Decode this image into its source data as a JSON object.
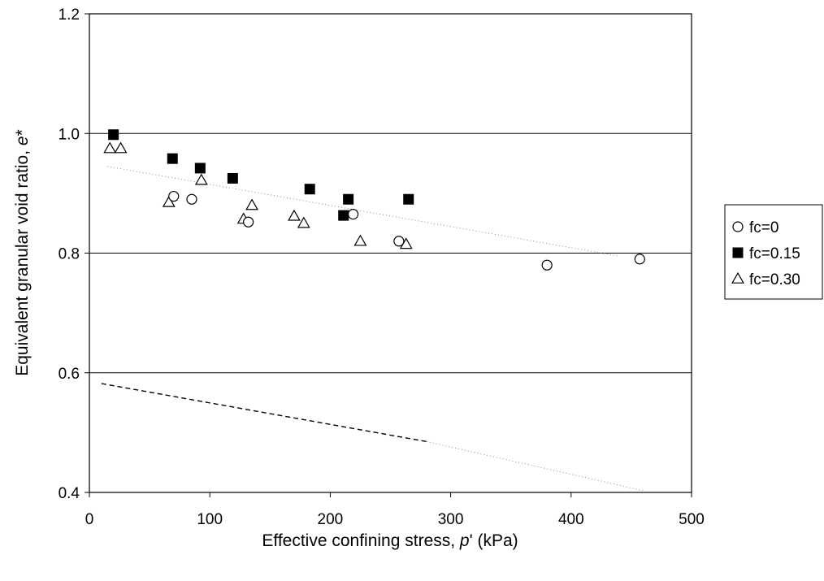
{
  "chart_data": {
    "type": "scatter",
    "xlabel": {
      "prefix": "Effective confining stress, ",
      "symbol": "p",
      "suffix": "' (kPa)"
    },
    "ylabel": {
      "prefix": "Equivalent granular void ratio, ",
      "symbol": "e",
      "suffix": "*"
    },
    "xlim": [
      0,
      500
    ],
    "ylim": [
      0.4,
      1.2
    ],
    "x_ticks": [
      "0",
      "100",
      "200",
      "300",
      "400",
      "500"
    ],
    "y_ticks": [
      "0.4",
      "0.6",
      "0.8",
      "1.0",
      "1.2"
    ],
    "x_tick_values": [
      0,
      100,
      200,
      300,
      400,
      500
    ],
    "y_tick_values": [
      0.4,
      0.6,
      0.8,
      1.0,
      1.2
    ],
    "grid": "horizontal",
    "legend_position": "right",
    "series": [
      {
        "name": "fc=0",
        "marker": "circle-open",
        "x": [
          70,
          85,
          132,
          219,
          257,
          380,
          457
        ],
        "y": [
          0.895,
          0.89,
          0.852,
          0.865,
          0.82,
          0.78,
          0.79
        ]
      },
      {
        "name": "fc=0.15",
        "marker": "square-filled",
        "x": [
          20,
          69,
          92,
          119,
          183,
          211,
          215,
          265
        ],
        "y": [
          0.998,
          0.958,
          0.942,
          0.925,
          0.907,
          0.863,
          0.89,
          0.89
        ]
      },
      {
        "name": "fc=0.30",
        "marker": "triangle-open",
        "x": [
          17,
          26,
          66,
          93,
          128,
          135,
          170,
          178,
          225,
          263
        ],
        "y": [
          0.975,
          0.975,
          0.885,
          0.922,
          0.857,
          0.88,
          0.862,
          0.85,
          0.82,
          0.815
        ]
      }
    ],
    "lines": [
      {
        "style": "dashed",
        "x": [
          10,
          280
        ],
        "y": [
          0.582,
          0.485
        ]
      },
      {
        "style": "dotted-faint",
        "x": [
          280,
          460
        ],
        "y": [
          0.485,
          0.403
        ]
      },
      {
        "style": "dotted-faint",
        "x": [
          15,
          440
        ],
        "y": [
          0.945,
          0.795
        ]
      }
    ],
    "colors": {
      "axis": "#000000",
      "grid": "#000000",
      "marker": "#000000",
      "background": "#ffffff"
    }
  }
}
